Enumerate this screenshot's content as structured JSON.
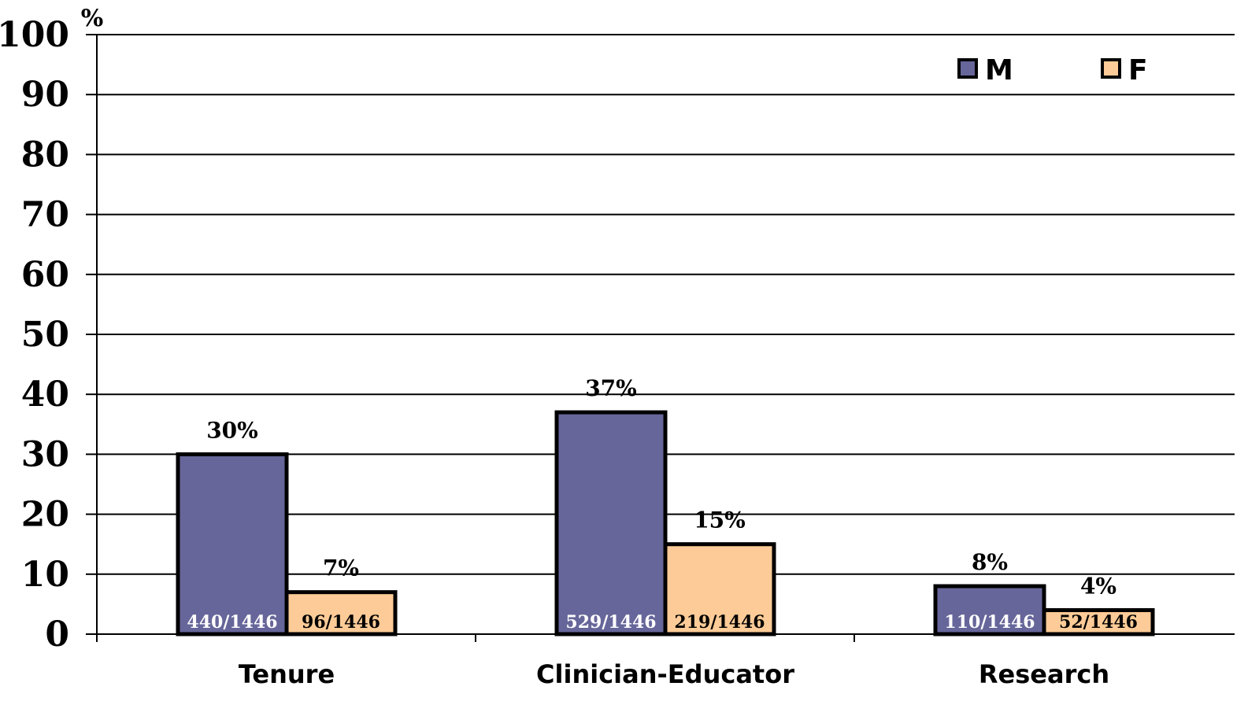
{
  "chart_data": {
    "type": "bar",
    "y_unit_label": "%",
    "ylim": [
      0,
      100
    ],
    "yticks": [
      0,
      10,
      20,
      30,
      40,
      50,
      60,
      70,
      80,
      90,
      100
    ],
    "grid": true,
    "legend_position": "top-right",
    "categories": [
      "Tenure",
      "Clinician-Educator",
      "Research"
    ],
    "series": [
      {
        "name": "M",
        "color": "#67669a",
        "values": [
          30,
          37,
          8
        ],
        "value_labels": [
          "30%",
          "37%",
          "8%"
        ],
        "inner_labels": [
          "440/1446",
          "529/1446",
          "110/1446"
        ],
        "inner_label_color": "#ffffff"
      },
      {
        "name": "F",
        "color": "#fdcb97",
        "values": [
          7,
          15,
          4
        ],
        "value_labels": [
          "7%",
          "15%",
          "4%"
        ],
        "inner_labels": [
          "96/1446",
          "219/1446",
          "52/1446"
        ],
        "inner_label_color": "#000000"
      }
    ]
  }
}
